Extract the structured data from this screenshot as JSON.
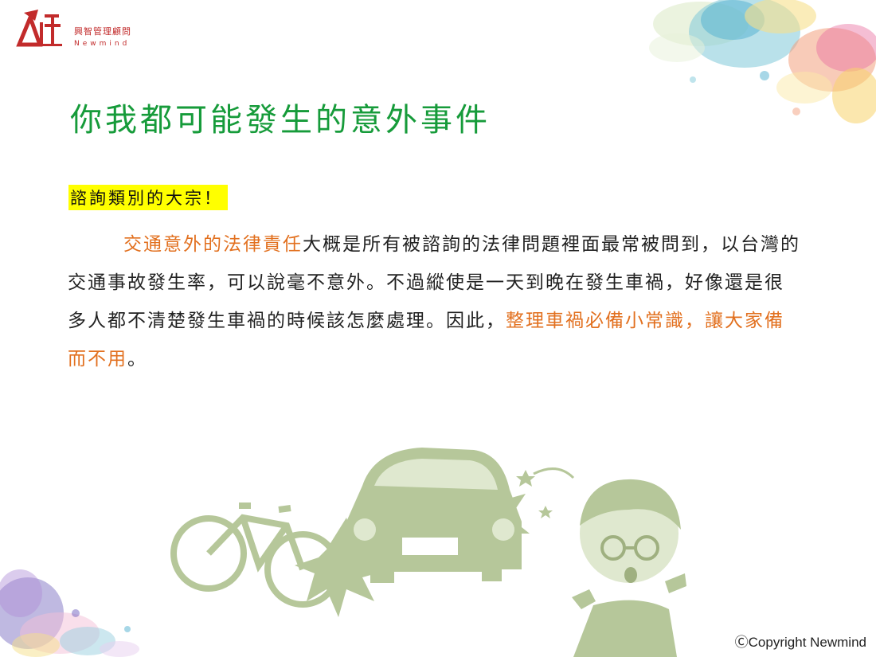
{
  "logo": {
    "name_zh": "興智管理顧問",
    "name_en": "Newmind"
  },
  "title": "你我都可能發生的意外事件",
  "subtitle": "諮詢類別的大宗！",
  "body": {
    "seg1_highlight": "交通意外的法律責任",
    "seg2": "大概是所有被諮詢的法律問題裡面最常被問到，以台灣的交通事故發生率，可以說毫不意外。不過縱使是一天到晚在發生車禍，好像還是很多人都不清楚發生車禍的時候該怎麼處理。因此，",
    "seg3_highlight": "整理車禍必備小常識，讓大家備而不用",
    "seg4": "。"
  },
  "copyright": "ⒸCopyright Newmind",
  "colors": {
    "title": "#169b3a",
    "highlight": "#e2701f",
    "subtitle_bg": "#ffff00",
    "logo_red": "#c22b2b",
    "illustration": "#b6c79a"
  }
}
